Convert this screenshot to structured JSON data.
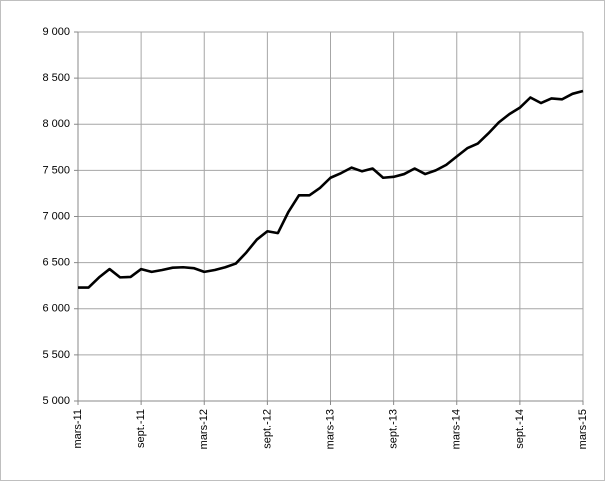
{
  "chart_data": {
    "type": "line",
    "categories": [
      "mars-11",
      null,
      null,
      null,
      null,
      null,
      "sept.-11",
      null,
      null,
      null,
      null,
      null,
      "mars-12",
      null,
      null,
      null,
      null,
      null,
      "sept.-12",
      null,
      null,
      null,
      null,
      null,
      "mars-13",
      null,
      null,
      null,
      null,
      null,
      "sept.-13",
      null,
      null,
      null,
      null,
      null,
      "mars-14",
      null,
      null,
      null,
      null,
      null,
      "sept.-14",
      null,
      null,
      null,
      null,
      null,
      "mars-15"
    ],
    "values": [
      6230,
      6230,
      6340,
      6430,
      6340,
      6345,
      6430,
      6400,
      6420,
      6445,
      6450,
      6440,
      6400,
      6420,
      6450,
      6490,
      6610,
      6750,
      6840,
      6820,
      7050,
      7230,
      7230,
      7310,
      7420,
      7470,
      7530,
      7490,
      7520,
      7420,
      7430,
      7460,
      7520,
      7460,
      7500,
      7560,
      7650,
      7740,
      7790,
      7900,
      8020,
      8110,
      8180,
      8290,
      8230,
      8280,
      8270,
      8330,
      8360
    ],
    "color": "#000000",
    "ylim": [
      5000,
      9000
    ],
    "yticks": [
      {
        "value": 5000,
        "label": "5 000"
      },
      {
        "value": 5500,
        "label": "5 500"
      },
      {
        "value": 6000,
        "label": "6 000"
      },
      {
        "value": 6500,
        "label": "6 500"
      },
      {
        "value": 7000,
        "label": "7 000"
      },
      {
        "value": 7500,
        "label": "7 500"
      },
      {
        "value": 8000,
        "label": "8 000"
      },
      {
        "value": 8500,
        "label": "8 500"
      },
      {
        "value": 9000,
        "label": "9 000"
      }
    ],
    "grid": true
  }
}
